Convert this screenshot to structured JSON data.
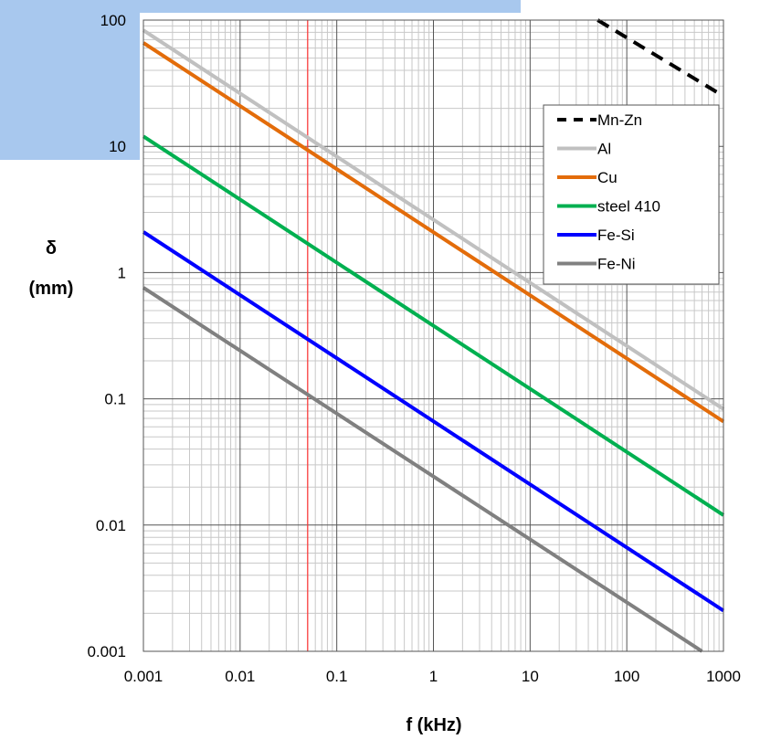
{
  "chart_data": {
    "type": "line",
    "xlabel": "f (kHz)",
    "ylabel": [
      "δ",
      "(mm)"
    ],
    "xscale": "log",
    "yscale": "log",
    "xlim": [
      0.001,
      1000
    ],
    "ylim": [
      0.001,
      100
    ],
    "xticks": [
      "0.001",
      "0.01",
      "0.1",
      "1",
      "10",
      "100",
      "1000"
    ],
    "yticks": [
      "0.001",
      "0.01",
      "0.1",
      "1",
      "10",
      "100"
    ],
    "grid": true,
    "legend_position": "top-right",
    "reference_line": {
      "x": 0.05,
      "color": "#ff3333"
    },
    "series": [
      {
        "name": "Mn-Zn",
        "color": "#000000",
        "dashed": true,
        "x": [
          50,
          1000
        ],
        "y": [
          100,
          25
        ]
      },
      {
        "name": "Al",
        "color": "#c0c0c0",
        "dashed": false,
        "x": [
          0.001,
          1000
        ],
        "y": [
          83,
          0.083
        ]
      },
      {
        "name": "Cu",
        "color": "#e36c0a",
        "dashed": false,
        "x": [
          0.001,
          1000
        ],
        "y": [
          66,
          0.066
        ]
      },
      {
        "name": "steel 410",
        "color": "#00b050",
        "dashed": false,
        "x": [
          0.001,
          1000
        ],
        "y": [
          12,
          0.012
        ]
      },
      {
        "name": "Fe-Si",
        "color": "#0000ff",
        "dashed": false,
        "x": [
          0.001,
          1000
        ],
        "y": [
          2.1,
          0.0021
        ]
      },
      {
        "name": "Fe-Ni",
        "color": "#808080",
        "dashed": false,
        "x": [
          0.001,
          600
        ],
        "y": [
          0.76,
          0.001
        ]
      }
    ]
  }
}
